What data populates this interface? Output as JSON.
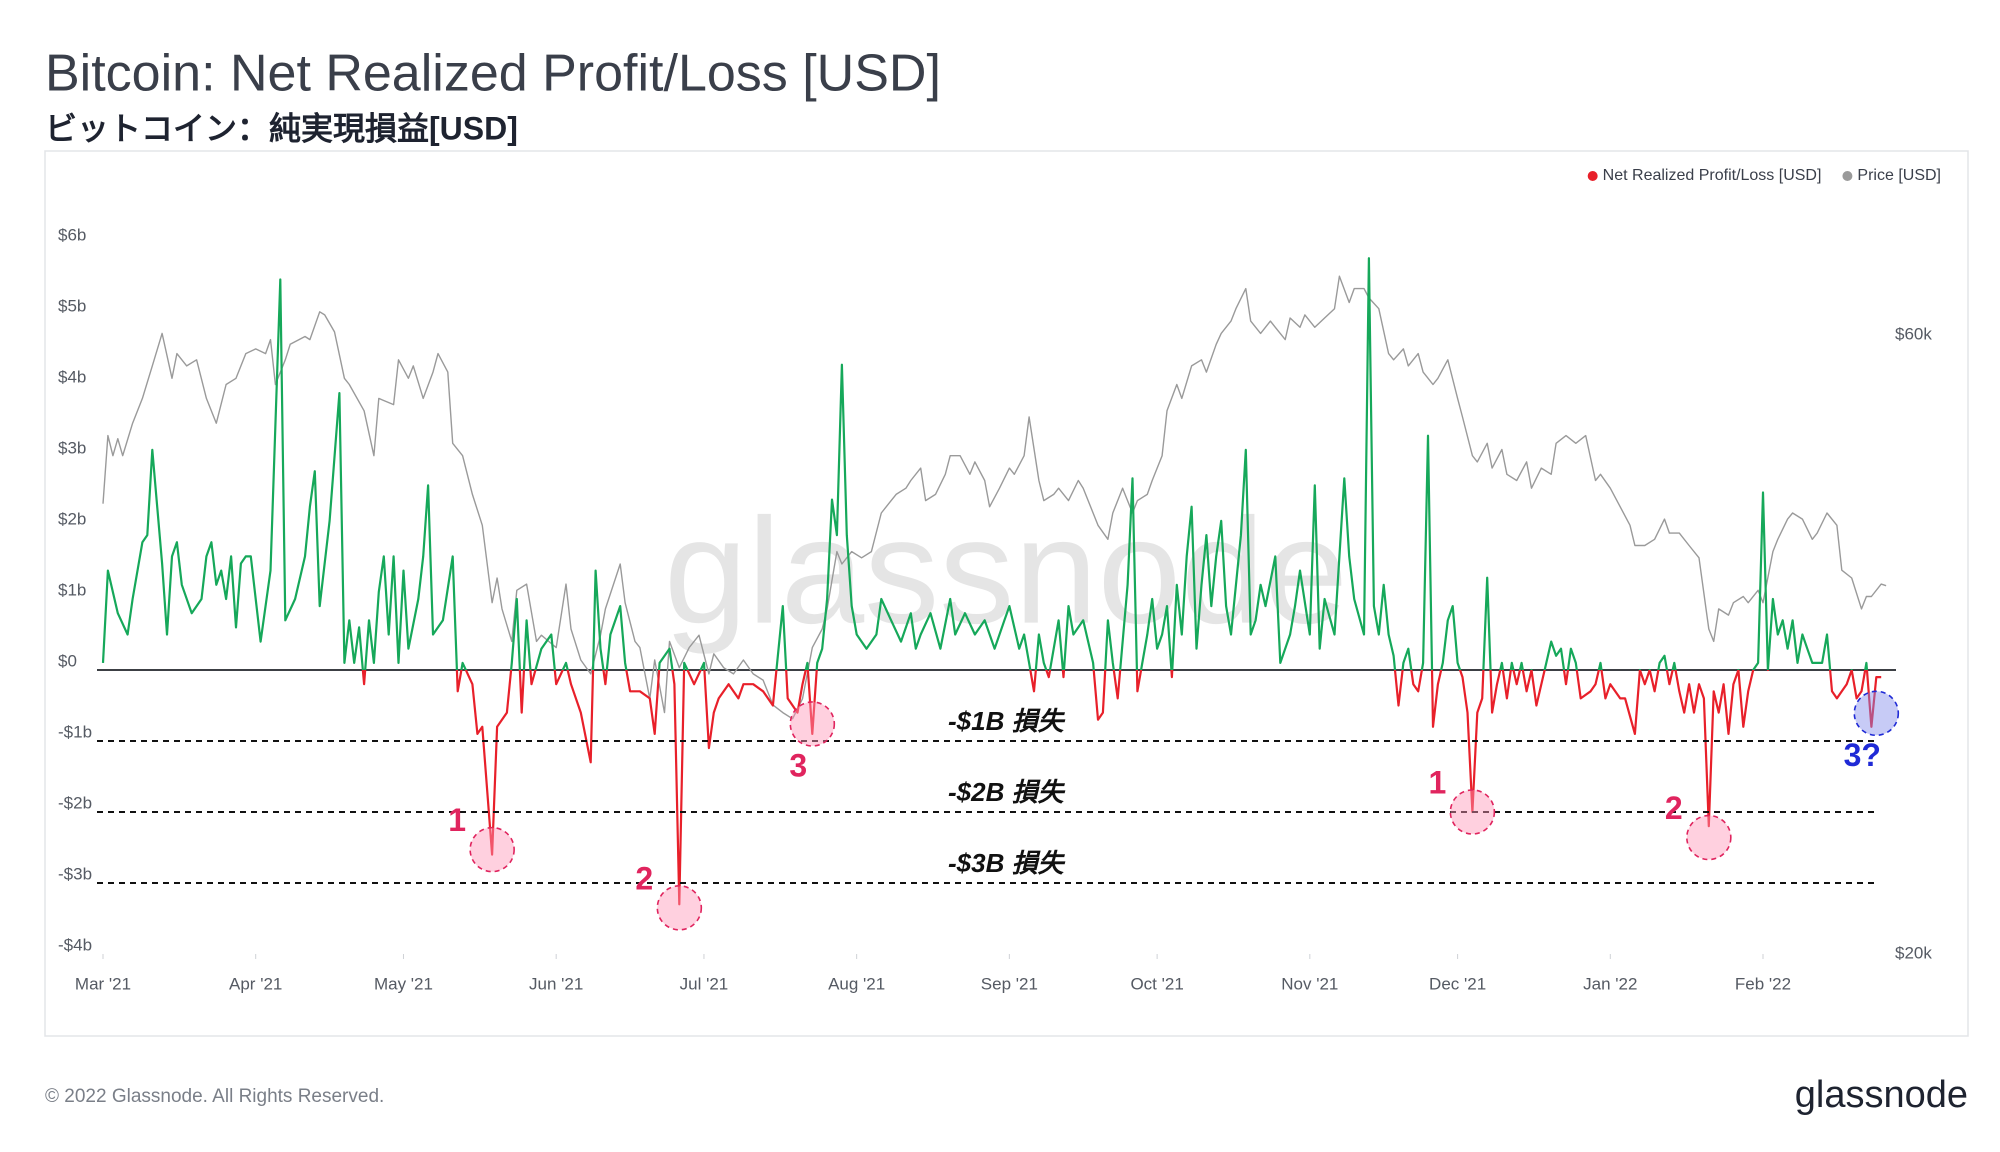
{
  "chart_data": {
    "type": "line",
    "title": "Bitcoin: Net Realized Profit/Loss [USD]",
    "subtitle": "ビットコイン：純実現損益[USD]",
    "watermark": "glassnode",
    "footer": "© 2022 Glassnode. All Rights Reserved.",
    "logo": "glassnode",
    "legend": "top-right",
    "grid": false,
    "xlim": [
      0,
      364
    ],
    "xticks": [
      {
        "value": 0,
        "label": "Mar '21"
      },
      {
        "value": 31,
        "label": "Apr '21"
      },
      {
        "value": 61,
        "label": "May '21"
      },
      {
        "value": 92,
        "label": "Jun '21"
      },
      {
        "value": 122,
        "label": "Jul '21"
      },
      {
        "value": 153,
        "label": "Aug '21"
      },
      {
        "value": 184,
        "label": "Sep '21"
      },
      {
        "value": 214,
        "label": "Oct '21"
      },
      {
        "value": 245,
        "label": "Nov '21"
      },
      {
        "value": 275,
        "label": "Dec '21"
      },
      {
        "value": 306,
        "label": "Jan '22"
      },
      {
        "value": 337,
        "label": "Feb '22"
      }
    ],
    "ylim": [
      -4,
      6
    ],
    "yticks": [
      {
        "value": -4,
        "label": "-$4b"
      },
      {
        "value": -3,
        "label": "-$3b"
      },
      {
        "value": -2,
        "label": "-$2b"
      },
      {
        "value": -1,
        "label": "-$1b"
      },
      {
        "value": 0,
        "label": "$0"
      },
      {
        "value": 1,
        "label": "$1b"
      },
      {
        "value": 2,
        "label": "$2b"
      },
      {
        "value": 3,
        "label": "$3b"
      },
      {
        "value": 4,
        "label": "$4b"
      },
      {
        "value": 5,
        "label": "$5b"
      },
      {
        "value": 6,
        "label": "$6b"
      }
    ],
    "y2lim": [
      20000,
      65880
    ],
    "y2ticks": [
      {
        "value": 20000,
        "label": "$20k"
      },
      {
        "value": 60000,
        "label": "$60k"
      }
    ],
    "references": [
      {
        "value": -1,
        "label": "-$1B 損失"
      },
      {
        "value": -2,
        "label": "-$2B 損失"
      },
      {
        "value": -3,
        "label": "-$3B 損失"
      }
    ],
    "annotations": [
      {
        "label": "1",
        "x": 79,
        "y": -2.53,
        "color": "#e0245e",
        "position": "upper-left"
      },
      {
        "label": "2",
        "x": 117,
        "y": -3.35,
        "color": "#e0245e",
        "position": "upper-left"
      },
      {
        "label": "3",
        "x": 144,
        "y": -0.76,
        "color": "#e0245e",
        "position": "below"
      },
      {
        "label": "1",
        "x": 278,
        "y": -2.0,
        "color": "#e0245e",
        "position": "upper-left"
      },
      {
        "label": "2",
        "x": 326,
        "y": -2.36,
        "color": "#e0245e",
        "position": "upper-left"
      },
      {
        "label": "3?",
        "x": 360,
        "y": -0.61,
        "color": "#1f2ad6",
        "position": "below"
      }
    ],
    "series": [
      {
        "name": "Net Realized Profit/Loss [USD]",
        "color": "#e8202a",
        "positive_color": "#16a85a",
        "axis": "y",
        "x": [
          0,
          1,
          3,
          5,
          6,
          8,
          9,
          10,
          12,
          13,
          14,
          15,
          16,
          18,
          20,
          21,
          22,
          23,
          24,
          25,
          26,
          27,
          28,
          29,
          30,
          32,
          34,
          36,
          37,
          39,
          41,
          42,
          43,
          44,
          46,
          48,
          49,
          50,
          51,
          52,
          53,
          54,
          55,
          56,
          57,
          58,
          59,
          60,
          61,
          62,
          64,
          65,
          66,
          67,
          69,
          71,
          72,
          73,
          75,
          76,
          77,
          79,
          80,
          82,
          83,
          84,
          85,
          86,
          87,
          89,
          91,
          92,
          94,
          95,
          97,
          99,
          100,
          101,
          102,
          103,
          105,
          106,
          107,
          109,
          111,
          112,
          113,
          115,
          116,
          117,
          118,
          120,
          122,
          123,
          124,
          125,
          127,
          129,
          130,
          132,
          134,
          136,
          138,
          139,
          141,
          142,
          143,
          144,
          145,
          146,
          147,
          148,
          149,
          150,
          151,
          152,
          153,
          155,
          157,
          158,
          160,
          162,
          164,
          165,
          166,
          168,
          170,
          172,
          173,
          175,
          177,
          179,
          181,
          183,
          184,
          186,
          187,
          188,
          189,
          190,
          191,
          192,
          193,
          194,
          195,
          196,
          197,
          199,
          201,
          202,
          203,
          204,
          205,
          206,
          208,
          209,
          210,
          211,
          212,
          213,
          214,
          215,
          216,
          217,
          218,
          219,
          220,
          221,
          222,
          223,
          224,
          225,
          226,
          227,
          228,
          229,
          231,
          232,
          233,
          234,
          235,
          236,
          238,
          239,
          240,
          241,
          242,
          243,
          245,
          246,
          247,
          248,
          250,
          252,
          253,
          254,
          256,
          257,
          258,
          259,
          260,
          261,
          262,
          263,
          264,
          265,
          266,
          267,
          268,
          269,
          270,
          271,
          272,
          273,
          274,
          275,
          276,
          277,
          278,
          279,
          280,
          281,
          282,
          283,
          284,
          285,
          286,
          287,
          288,
          289,
          290,
          291,
          293,
          294,
          295,
          296,
          297,
          298,
          299,
          300,
          302,
          303,
          304,
          305,
          306,
          308,
          309,
          311,
          312,
          313,
          314,
          315,
          316,
          317,
          318,
          319,
          320,
          321,
          322,
          323,
          324,
          325,
          326,
          327,
          328,
          329,
          330,
          331,
          332,
          333,
          334,
          335,
          336,
          337,
          338,
          339,
          340,
          341,
          342,
          343,
          344,
          345,
          346,
          347,
          348,
          349,
          350,
          351,
          352,
          353,
          354,
          355,
          356,
          357,
          358,
          359,
          360,
          361
        ],
        "values": [
          0.1,
          1.4,
          0.8,
          0.5,
          1.0,
          1.8,
          1.9,
          3.1,
          1.5,
          0.5,
          1.6,
          1.8,
          1.2,
          0.8,
          1.0,
          1.6,
          1.8,
          1.2,
          1.4,
          1.0,
          1.6,
          0.6,
          1.5,
          1.6,
          1.6,
          0.4,
          1.4,
          5.5,
          0.7,
          1.0,
          1.6,
          2.3,
          2.8,
          0.9,
          2.1,
          3.9,
          0.1,
          0.7,
          0.1,
          0.6,
          -0.2,
          0.7,
          0.1,
          1.1,
          1.6,
          0.5,
          1.6,
          0.1,
          1.4,
          0.3,
          1.0,
          1.6,
          2.6,
          0.5,
          0.7,
          1.6,
          -0.3,
          0.1,
          -0.2,
          -0.9,
          -0.8,
          -2.6,
          -0.8,
          -0.6,
          0.1,
          1.0,
          -0.6,
          0.7,
          -0.2,
          0.3,
          0.5,
          -0.2,
          0.1,
          -0.2,
          -0.6,
          -1.3,
          1.4,
          0.3,
          -0.2,
          0.5,
          0.9,
          0.1,
          -0.3,
          -0.3,
          -0.4,
          -0.9,
          0.1,
          0.3,
          -0.2,
          -3.3,
          0.1,
          -0.2,
          0.1,
          -1.1,
          -0.6,
          -0.4,
          -0.2,
          -0.4,
          -0.2,
          -0.2,
          -0.3,
          -0.5,
          0.9,
          -0.4,
          -0.6,
          -0.2,
          0.1,
          -0.9,
          0.1,
          0.3,
          1.0,
          2.4,
          1.9,
          4.3,
          1.9,
          0.9,
          0.5,
          0.3,
          0.5,
          1.0,
          0.7,
          0.4,
          0.8,
          0.3,
          0.5,
          0.8,
          0.3,
          1.0,
          0.5,
          0.8,
          0.5,
          0.7,
          0.3,
          0.7,
          0.9,
          0.3,
          0.5,
          0.1,
          -0.3,
          0.5,
          0.1,
          -0.1,
          0.3,
          0.7,
          -0.1,
          0.9,
          0.5,
          0.7,
          0.1,
          -0.7,
          -0.6,
          0.7,
          0.1,
          -0.4,
          1.2,
          2.7,
          -0.3,
          0.1,
          0.5,
          1.0,
          0.3,
          0.5,
          0.9,
          -0.1,
          1.2,
          0.5,
          1.6,
          2.3,
          0.3,
          1.2,
          1.9,
          0.9,
          1.6,
          2.1,
          0.9,
          0.5,
          1.9,
          3.1,
          0.5,
          0.7,
          1.2,
          0.9,
          1.6,
          0.1,
          0.3,
          0.5,
          0.9,
          1.4,
          0.5,
          2.6,
          0.3,
          1.0,
          0.5,
          2.7,
          1.6,
          1.0,
          0.5,
          5.8,
          0.9,
          0.5,
          1.2,
          0.5,
          0.2,
          -0.5,
          0.1,
          0.3,
          -0.2,
          -0.3,
          0.1,
          3.3,
          -0.8,
          -0.2,
          0.1,
          0.7,
          0.9,
          0.1,
          -0.1,
          -0.6,
          -2.0,
          -0.6,
          -0.4,
          1.3,
          -0.6,
          -0.2,
          0.1,
          -0.4,
          0.1,
          -0.2,
          0.1,
          -0.3,
          0,
          -0.5,
          0.1,
          0.4,
          0.2,
          0.3,
          -0.2,
          0.3,
          0.1,
          -0.4,
          -0.3,
          -0.2,
          0.1,
          -0.4,
          -0.2,
          -0.4,
          -0.4,
          -0.9,
          0,
          -0.2,
          0,
          -0.3,
          0.1,
          0.2,
          -0.2,
          0.1,
          -0.3,
          -0.6,
          -0.2,
          -0.6,
          -0.2,
          -0.4,
          -2.2,
          -0.3,
          -0.6,
          -0.2,
          -0.9,
          -0.2,
          0,
          -0.8,
          -0.3,
          0,
          0.1,
          2.5,
          0,
          1.0,
          0.5,
          0.7,
          0.3,
          0.7,
          0.1,
          0.5,
          0.3,
          0.1,
          0.1,
          0.1,
          0.5,
          -0.3,
          -0.4,
          -0.3,
          -0.2,
          0,
          -0.4,
          -0.3,
          0.1,
          -0.8,
          -0.1,
          -0.1
        ]
      },
      {
        "name": "Price [USD]",
        "color": "#9a9a9a",
        "axis": "y2",
        "x": [
          0,
          1,
          2,
          3,
          4,
          6,
          8,
          10,
          12,
          14,
          15,
          17,
          19,
          21,
          23,
          25,
          27,
          29,
          31,
          33,
          34,
          35,
          37,
          38,
          41,
          42,
          44,
          45,
          47,
          49,
          50,
          53,
          55,
          56,
          59,
          60,
          62,
          63,
          65,
          67,
          68,
          70,
          71,
          73,
          75,
          77,
          79,
          80,
          81,
          83,
          84,
          86,
          88,
          89,
          92,
          94,
          95,
          97,
          99,
          101,
          102,
          105,
          106,
          108,
          109,
          111,
          112,
          114,
          115,
          117,
          119,
          121,
          123,
          124,
          126,
          128,
          130,
          132,
          134,
          136,
          138,
          140,
          142,
          144,
          146,
          147,
          149,
          150,
          152,
          154,
          156,
          158,
          159,
          161,
          163,
          164,
          166,
          167,
          169,
          171,
          172,
          174,
          176,
          177,
          179,
          180,
          182,
          184,
          185,
          187,
          188,
          190,
          191,
          193,
          194,
          196,
          198,
          199,
          201,
          202,
          204,
          205,
          207,
          209,
          210,
          212,
          213,
          215,
          216,
          218,
          219,
          221,
          223,
          224,
          226,
          227,
          229,
          230,
          232,
          233,
          235,
          237,
          238,
          240,
          241,
          243,
          244,
          246,
          248,
          250,
          251,
          253,
          254,
          256,
          257,
          259,
          261,
          262,
          264,
          265,
          267,
          268,
          270,
          271,
          273,
          275,
          276,
          278,
          279,
          281,
          282,
          284,
          285,
          287,
          289,
          290,
          292,
          294,
          295,
          297,
          299,
          301,
          303,
          304,
          306,
          308,
          310,
          311,
          313,
          315,
          317,
          318,
          320,
          322,
          324,
          326,
          327,
          328,
          330,
          331,
          333,
          334,
          336,
          337,
          339,
          340,
          342,
          343,
          345,
          347,
          348,
          350,
          352,
          353,
          355,
          357,
          358,
          359,
          361,
          362
        ],
        "values": [
          49100,
          53500,
          52200,
          53300,
          52200,
          54300,
          55900,
          58000,
          60100,
          57200,
          58800,
          58000,
          58400,
          55900,
          54300,
          56800,
          57200,
          58800,
          59100,
          58800,
          59700,
          56800,
          58400,
          59400,
          59900,
          59700,
          61500,
          61300,
          60200,
          57200,
          56800,
          55100,
          52200,
          55900,
          55500,
          58400,
          57200,
          58000,
          55900,
          57600,
          58800,
          57600,
          53000,
          52200,
          49700,
          47700,
          42700,
          44300,
          42300,
          40200,
          43500,
          43900,
          40200,
          40600,
          39800,
          43900,
          41000,
          39000,
          38100,
          40600,
          42300,
          45200,
          42700,
          40200,
          39800,
          36500,
          39000,
          35600,
          40200,
          38500,
          39800,
          40600,
          38100,
          39400,
          38500,
          38100,
          39000,
          38100,
          37700,
          36100,
          35600,
          35200,
          36500,
          39800,
          41000,
          42300,
          46000,
          45200,
          46000,
          45600,
          46000,
          48500,
          48900,
          49700,
          50100,
          50600,
          51400,
          49300,
          49700,
          51000,
          52200,
          52200,
          51000,
          51800,
          50600,
          48900,
          50100,
          51400,
          51000,
          52200,
          54700,
          50600,
          49300,
          49700,
          50100,
          49300,
          50600,
          50100,
          48500,
          47700,
          46800,
          48500,
          50100,
          48500,
          49300,
          49700,
          50600,
          52200,
          55100,
          56800,
          55900,
          58000,
          58400,
          57600,
          59400,
          60100,
          60900,
          61700,
          63000,
          60900,
          60100,
          60900,
          60500,
          59700,
          61100,
          60500,
          61300,
          60500,
          61100,
          61700,
          63800,
          62100,
          63000,
          63000,
          62400,
          61700,
          58800,
          58400,
          59100,
          58000,
          58800,
          57600,
          56800,
          57200,
          58400,
          55900,
          54700,
          52200,
          51800,
          53000,
          51400,
          52600,
          51000,
          50600,
          51800,
          50100,
          51400,
          51000,
          53000,
          53500,
          53000,
          53500,
          50600,
          51000,
          50100,
          48900,
          47700,
          46400,
          46400,
          46800,
          48100,
          47200,
          47200,
          46400,
          45600,
          41000,
          40200,
          42300,
          41900,
          42700,
          43100,
          42700,
          43500,
          42700,
          46000,
          46800,
          48100,
          48500,
          48100,
          46800,
          47200,
          48500,
          47700,
          44800,
          44300,
          42300,
          43100,
          43100,
          43900,
          43800
        ]
      }
    ]
  }
}
